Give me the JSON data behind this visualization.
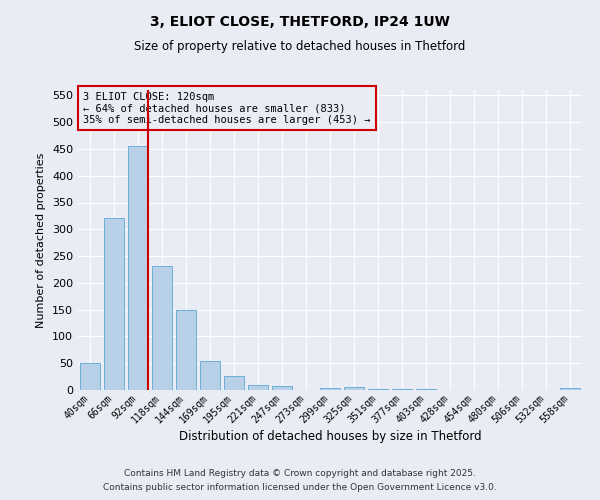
{
  "title": "3, ELIOT CLOSE, THETFORD, IP24 1UW",
  "subtitle": "Size of property relative to detached houses in Thetford",
  "xlabel": "Distribution of detached houses by size in Thetford",
  "ylabel": "Number of detached properties",
  "categories": [
    "40sqm",
    "66sqm",
    "92sqm",
    "118sqm",
    "144sqm",
    "169sqm",
    "195sqm",
    "221sqm",
    "247sqm",
    "273sqm",
    "299sqm",
    "325sqm",
    "351sqm",
    "377sqm",
    "403sqm",
    "428sqm",
    "454sqm",
    "480sqm",
    "506sqm",
    "532sqm",
    "558sqm"
  ],
  "values": [
    50,
    322,
    456,
    232,
    150,
    55,
    26,
    10,
    7,
    0,
    3,
    5,
    1,
    1,
    1,
    0,
    0,
    0,
    0,
    0,
    3
  ],
  "bar_color": "#b8d0e8",
  "bar_edgecolor": "#6baed6",
  "vline_index": 2,
  "marker_label_line1": "3 ELIOT CLOSE: 120sqm",
  "marker_label_line2": "← 64% of detached houses are smaller (833)",
  "marker_label_line3": "35% of semi-detached houses are larger (453) →",
  "annotation_box_edgecolor": "#cc0000",
  "vline_color": "#cc0000",
  "ylim": [
    0,
    560
  ],
  "yticks": [
    0,
    50,
    100,
    150,
    200,
    250,
    300,
    350,
    400,
    450,
    500,
    550
  ],
  "background_color": "#eaecf5",
  "grid_color": "#ffffff",
  "footer_line1": "Contains HM Land Registry data © Crown copyright and database right 2025.",
  "footer_line2": "Contains public sector information licensed under the Open Government Licence v3.0."
}
